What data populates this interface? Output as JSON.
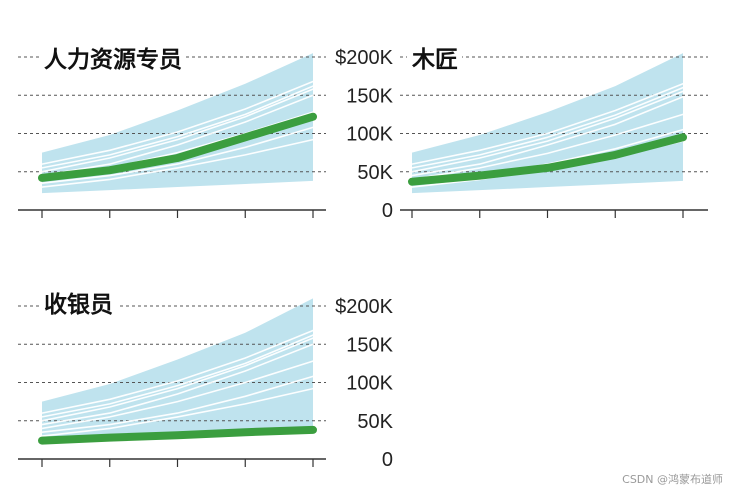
{
  "chart_data": [
    {
      "type": "area",
      "title": "人力资源专员",
      "x": [
        0,
        1,
        2,
        3,
        4
      ],
      "ylim": [
        0,
        200000
      ],
      "yticks": [
        0,
        50000,
        100000,
        150000,
        200000
      ],
      "yticklabels": [
        "0",
        "50K",
        "100K",
        "150K",
        "$200K"
      ],
      "band": {
        "lower": [
          22000,
          26000,
          30000,
          34000,
          38000
        ],
        "upper": [
          75000,
          98000,
          130000,
          165000,
          205000
        ]
      },
      "background_lines": [
        [
          45000,
          60000,
          85000,
          115000,
          150000
        ],
        [
          40000,
          55000,
          75000,
          100000,
          128000
        ],
        [
          50000,
          68000,
          92000,
          122000,
          158000
        ],
        [
          35000,
          45000,
          60000,
          82000,
          108000
        ],
        [
          55000,
          72000,
          96000,
          125000,
          162000
        ],
        [
          30000,
          40000,
          55000,
          72000,
          92000
        ],
        [
          60000,
          78000,
          102000,
          132000,
          168000
        ]
      ],
      "series": [
        {
          "values": [
            42000,
            52000,
            68000,
            95000,
            122000
          ]
        }
      ]
    },
    {
      "type": "area",
      "title": "木匠",
      "x": [
        0,
        1,
        2,
        3,
        4
      ],
      "ylim": [
        0,
        200000
      ],
      "yticks": [
        0,
        50000,
        100000,
        150000,
        200000
      ],
      "yticklabels": [
        "",
        "",
        "",
        "",
        ""
      ],
      "band": {
        "lower": [
          22000,
          26000,
          30000,
          34000,
          38000
        ],
        "upper": [
          75000,
          98000,
          128000,
          162000,
          205000
        ]
      },
      "background_lines": [
        [
          45000,
          60000,
          85000,
          112000,
          148000
        ],
        [
          40000,
          55000,
          74000,
          98000,
          125000
        ],
        [
          50000,
          68000,
          90000,
          120000,
          155000
        ],
        [
          35000,
          45000,
          60000,
          80000,
          105000
        ],
        [
          55000,
          72000,
          95000,
          124000,
          160000
        ],
        [
          30000,
          40000,
          54000,
          70000,
          90000
        ],
        [
          60000,
          78000,
          100000,
          130000,
          165000
        ]
      ],
      "series": [
        {
          "values": [
            37000,
            45000,
            55000,
            72000,
            95000
          ]
        }
      ]
    },
    {
      "type": "area",
      "title": "收银员",
      "x": [
        0,
        1,
        2,
        3,
        4
      ],
      "ylim": [
        0,
        200000
      ],
      "yticks": [
        0,
        50000,
        100000,
        150000,
        200000
      ],
      "yticklabels": [
        "0",
        "50K",
        "100K",
        "150K",
        "$200K"
      ],
      "band": {
        "lower": [
          22000,
          26000,
          30000,
          34000,
          38000
        ],
        "upper": [
          75000,
          98000,
          130000,
          165000,
          210000
        ]
      },
      "background_lines": [
        [
          45000,
          60000,
          85000,
          115000,
          150000
        ],
        [
          40000,
          55000,
          75000,
          100000,
          128000
        ],
        [
          50000,
          68000,
          92000,
          122000,
          158000
        ],
        [
          35000,
          45000,
          60000,
          82000,
          108000
        ],
        [
          55000,
          72000,
          96000,
          125000,
          162000
        ],
        [
          30000,
          40000,
          55000,
          72000,
          92000
        ],
        [
          60000,
          78000,
          102000,
          132000,
          168000
        ]
      ],
      "series": [
        {
          "values": [
            24000,
            28000,
            31000,
            35000,
            38000
          ]
        }
      ]
    }
  ],
  "colors": {
    "band": "#bfe3ee",
    "main_line": "#3b9e3f",
    "thin_line": "#ffffff",
    "grid": "#555555"
  },
  "footer": "CSDN @鸿蒙布道师"
}
